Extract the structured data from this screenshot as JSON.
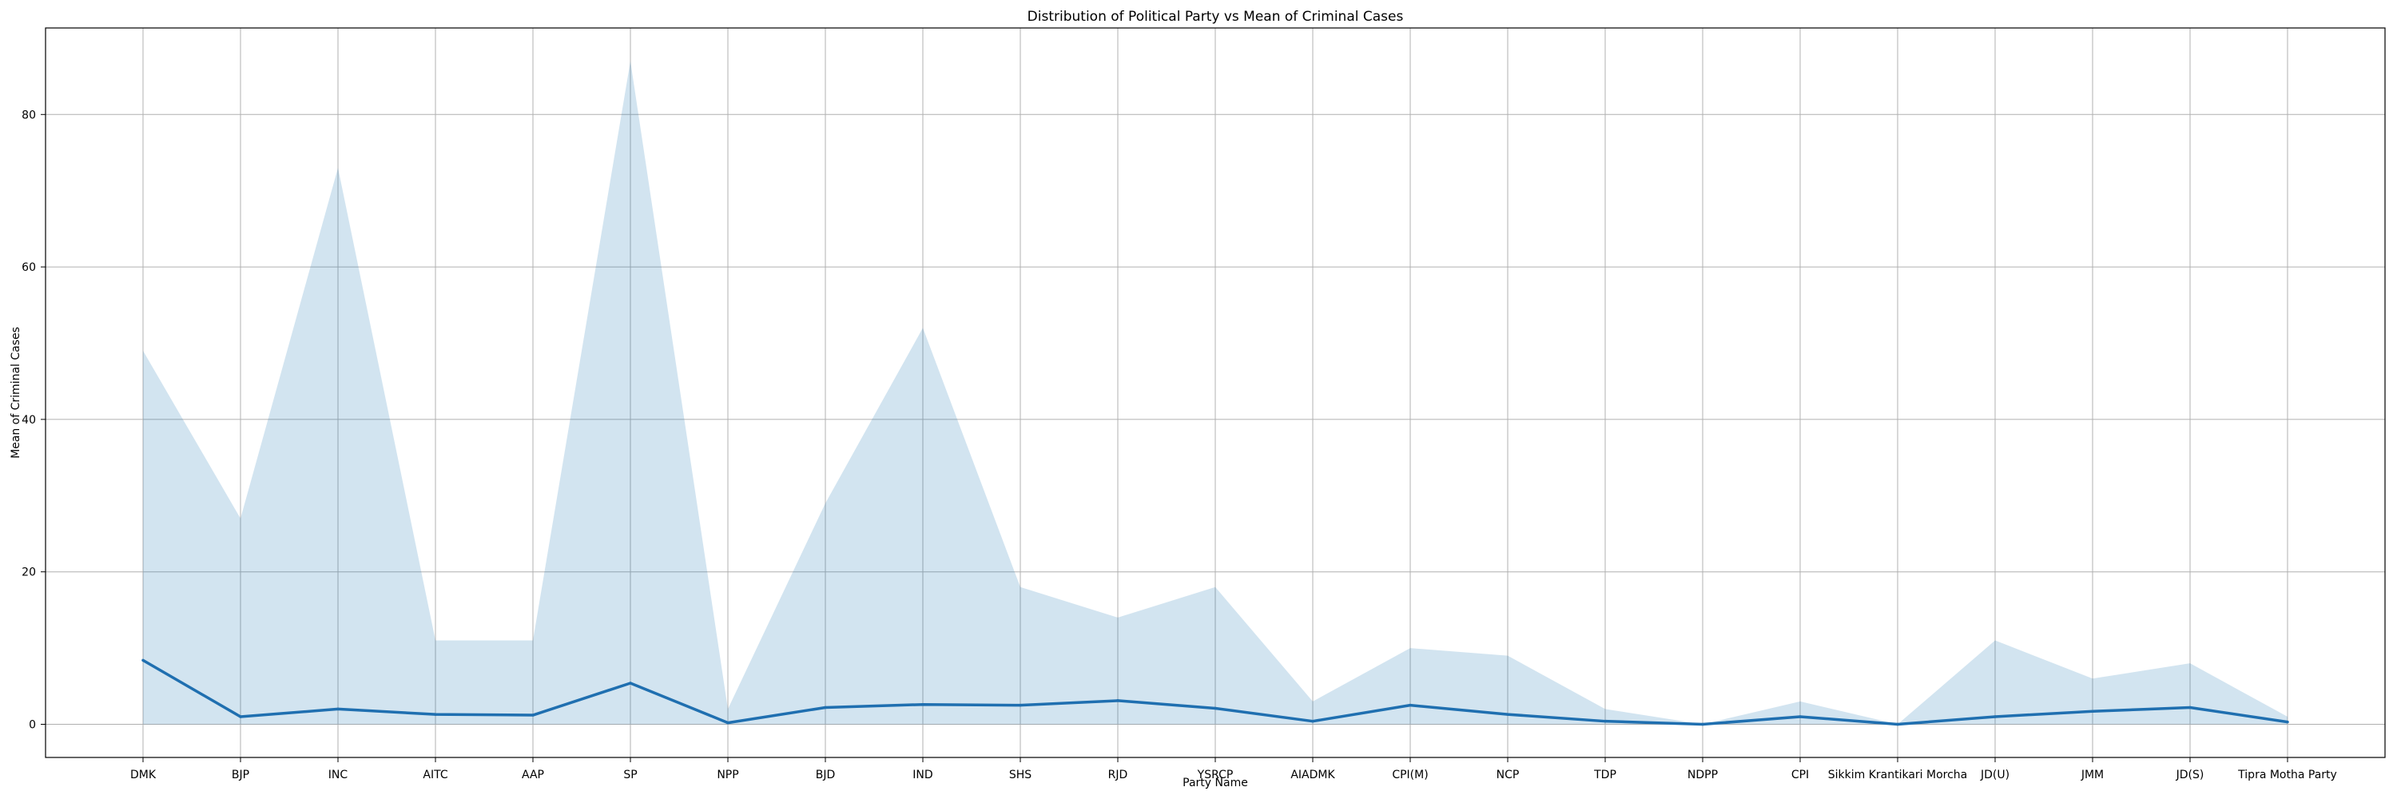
{
  "chart_data": {
    "type": "line",
    "title": "Distribution of Political Party vs Mean of Criminal Cases",
    "xlabel": "Party Name",
    "ylabel": "Mean of Criminal Cases",
    "categories": [
      "DMK",
      "BJP",
      "INC",
      "AITC",
      "AAP",
      "SP",
      "NPP",
      "BJD",
      "IND",
      "SHS",
      "RJD",
      "YSRCP",
      "AIADMK",
      "CPI(M)",
      "NCP",
      "TDP",
      "NDPP",
      "CPI",
      "Sikkim Krantikari Morcha",
      "JD(U)",
      "JMM",
      "JD(S)",
      "Tipra Motha Party"
    ],
    "series": [
      {
        "values": [
          8.4,
          1.0,
          2.0,
          1.3,
          1.2,
          5.4,
          0.2,
          2.2,
          2.6,
          2.5,
          3.1,
          2.1,
          0.4,
          2.5,
          1.3,
          0.4,
          0.0,
          1.0,
          0.0,
          1.0,
          1.7,
          2.2,
          0.3
        ],
        "band_upper": [
          49,
          27,
          73,
          11,
          11,
          87,
          2,
          29,
          52,
          18,
          14,
          18,
          3,
          10,
          9,
          2,
          0,
          3,
          0,
          11,
          6,
          8,
          1
        ],
        "band_lower": [
          0,
          0,
          0,
          0,
          0,
          0,
          0,
          0,
          0,
          0,
          0,
          0,
          0,
          0,
          0,
          0,
          0,
          0,
          0,
          0,
          0,
          0,
          0
        ]
      }
    ],
    "yticks": [
      0,
      20,
      40,
      60,
      80
    ],
    "ylim": [
      -4.35,
      91.35
    ],
    "grid": true,
    "colors": {
      "line": "#1f6fb0",
      "band": "#1f77b4",
      "grid": "#b0b0b0",
      "axis": "#000000"
    }
  }
}
